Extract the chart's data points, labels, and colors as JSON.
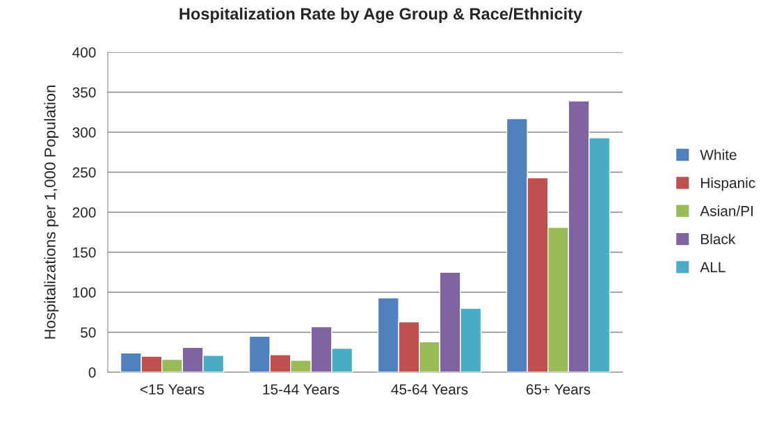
{
  "chart_data": {
    "type": "bar",
    "title": "Hospitalization Rate by Age Group & Race/Ethnicity",
    "ylabel": "Hospitalizations per 1,000 Population",
    "categories": [
      "<15 Years",
      "15-44 Years",
      "45-64 Years",
      "65+ Years"
    ],
    "series": [
      {
        "name": "White",
        "color": "#4f81bd",
        "values": [
          24,
          45,
          93,
          317
        ]
      },
      {
        "name": "Hispanic",
        "color": "#c0504d",
        "values": [
          20,
          22,
          63,
          243
        ]
      },
      {
        "name": "Asian/PI",
        "color": "#9bbb59",
        "values": [
          16,
          15,
          38,
          181
        ]
      },
      {
        "name": "Black",
        "color": "#8064a2",
        "values": [
          31,
          57,
          125,
          339
        ]
      },
      {
        "name": "ALL",
        "color": "#4bacc6",
        "values": [
          21,
          30,
          80,
          293
        ]
      }
    ],
    "ylim": [
      0,
      400
    ],
    "yticks": [
      0,
      50,
      100,
      150,
      200,
      250,
      300,
      350,
      400
    ],
    "grid": "y",
    "legend": "right"
  }
}
